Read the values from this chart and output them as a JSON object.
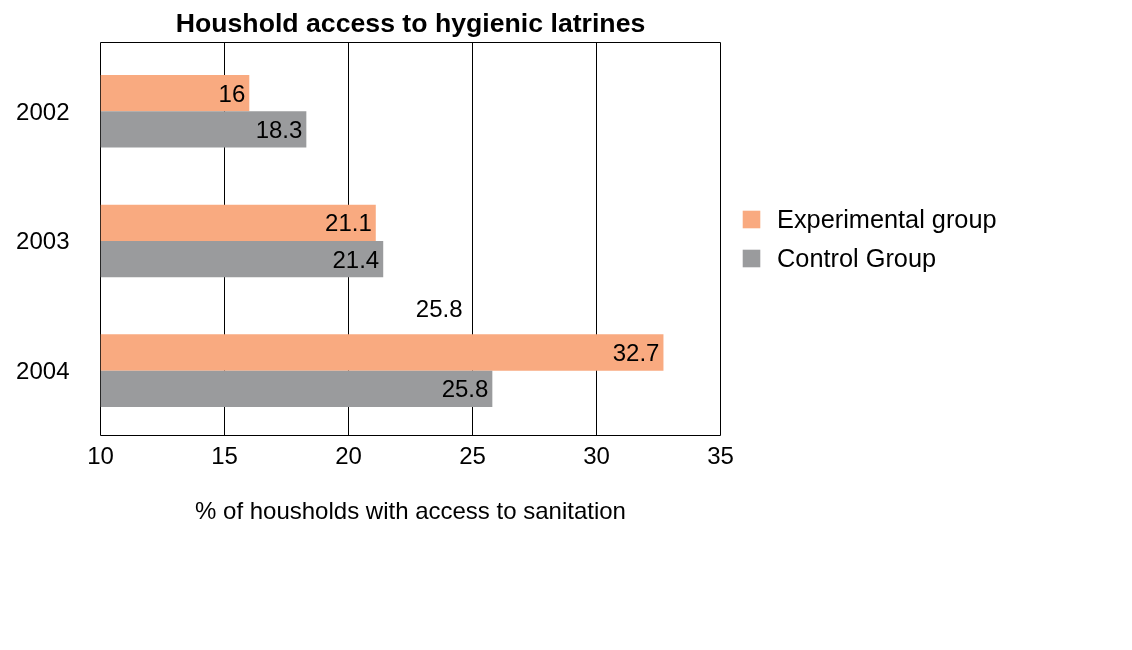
{
  "chart_data": {
    "type": "bar",
    "orientation": "horizontal",
    "title": "Houshold access to hygienic latrines",
    "xlabel": "% of housholds with access to sanitation",
    "categories": [
      "2002",
      "2003",
      "2004"
    ],
    "series": [
      {
        "name": "Experimental group",
        "color": "#f9aa80",
        "values": [
          16,
          21.1,
          32.7
        ]
      },
      {
        "name": "Control Group",
        "color": "#9a9b9d",
        "values": [
          18.3,
          21.4,
          25.8
        ]
      }
    ],
    "xlim": [
      10,
      35
    ],
    "xticks": [
      10,
      15,
      20,
      25,
      30,
      35
    ],
    "grid": "x",
    "legend": "right",
    "data_labels": true,
    "annotations": [
      "25.8"
    ]
  }
}
